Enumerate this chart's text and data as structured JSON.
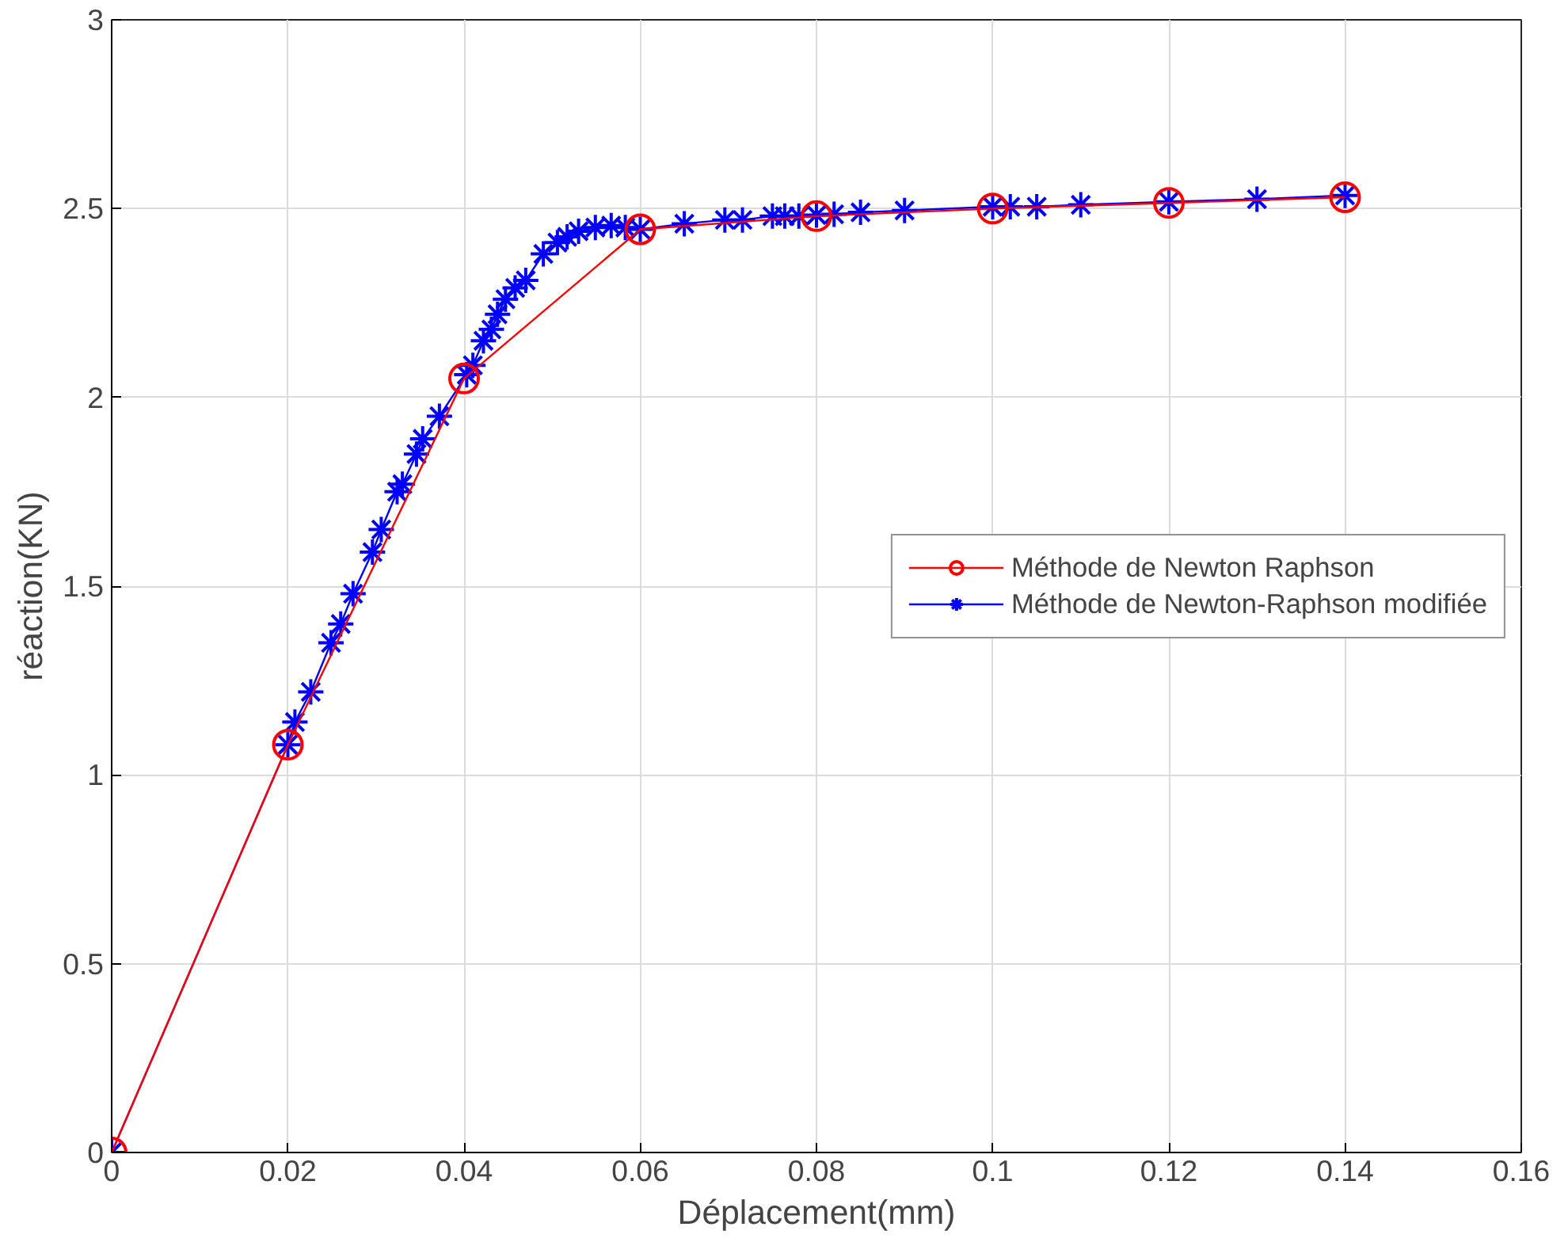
{
  "chart_data": {
    "type": "line",
    "xlabel": "Déplacement(mm)",
    "ylabel": "réaction(KN)",
    "xlim": [
      0,
      0.16
    ],
    "ylim": [
      0,
      3
    ],
    "xticks": [
      0,
      0.02,
      0.04,
      0.06,
      0.08,
      0.1,
      0.12,
      0.14,
      0.16
    ],
    "yticks": [
      0,
      0.5,
      1,
      1.5,
      2,
      2.5,
      3
    ],
    "grid": true,
    "legend": "center right",
    "series": [
      {
        "name": "Méthode de Newton Raphson",
        "color": "#ff0000",
        "marker": "circle",
        "x": [
          0,
          0.02,
          0.04,
          0.06,
          0.08,
          0.1,
          0.12,
          0.14
        ],
        "values": [
          0,
          1.08,
          2.05,
          2.445,
          2.48,
          2.5,
          2.515,
          2.53
        ]
      },
      {
        "name": "Méthode de Newton-Raphson modifiée",
        "color": "#0000ff",
        "marker": "cross",
        "x": [
          0,
          0.02,
          0.0208,
          0.0226,
          0.0249,
          0.026,
          0.0274,
          0.0296,
          0.0306,
          0.0324,
          0.033,
          0.0346,
          0.0353,
          0.0372,
          0.0403,
          0.041,
          0.0422,
          0.0431,
          0.0438,
          0.0447,
          0.0458,
          0.047,
          0.049,
          0.0506,
          0.0517,
          0.053,
          0.0549,
          0.0567,
          0.0583,
          0.06,
          0.065,
          0.0696,
          0.0716,
          0.075,
          0.0764,
          0.078,
          0.08,
          0.082,
          0.085,
          0.09,
          0.1,
          0.102,
          0.105,
          0.11,
          0.12,
          0.13,
          0.14
        ],
        "values": [
          0,
          1.08,
          1.14,
          1.22,
          1.35,
          1.4,
          1.48,
          1.59,
          1.65,
          1.75,
          1.77,
          1.85,
          1.89,
          1.95,
          2.06,
          2.085,
          2.15,
          2.18,
          2.22,
          2.26,
          2.29,
          2.31,
          2.38,
          2.41,
          2.425,
          2.44,
          2.45,
          2.455,
          2.45,
          2.445,
          2.46,
          2.47,
          2.47,
          2.48,
          2.48,
          2.48,
          2.483,
          2.485,
          2.49,
          2.495,
          2.505,
          2.505,
          2.505,
          2.51,
          2.518,
          2.525,
          2.535
        ]
      }
    ]
  }
}
